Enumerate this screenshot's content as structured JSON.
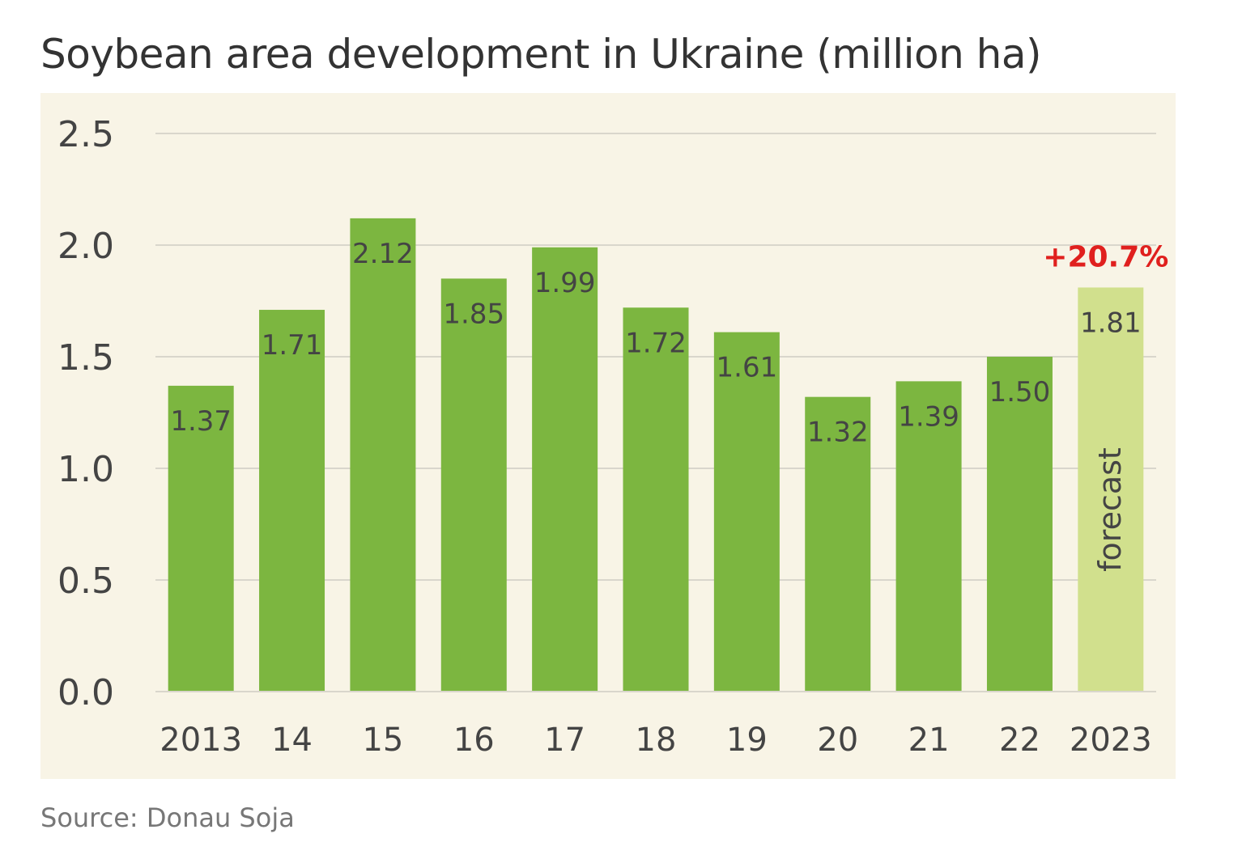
{
  "title": "Soybean area development in Ukraine (million ha)",
  "source": "Source: Donau Soja",
  "colors": {
    "panel": "#f8f4e6",
    "grid": "#d9d6cc",
    "bar": "#7cb640",
    "forecast_bar": "#d1e08d",
    "text": "#444444",
    "highlight": "#e0201e"
  },
  "chart_data": {
    "type": "bar",
    "categories": [
      "2013",
      "14",
      "15",
      "16",
      "17",
      "18",
      "19",
      "20",
      "21",
      "22",
      "2023"
    ],
    "values": [
      1.37,
      1.71,
      2.12,
      1.85,
      1.99,
      1.72,
      1.61,
      1.32,
      1.39,
      1.5,
      1.81
    ],
    "value_labels": [
      "1.37",
      "1.71",
      "2.12",
      "1.85",
      "1.99",
      "1.72",
      "1.61",
      "1.32",
      "1.39",
      "1.50",
      "1.81"
    ],
    "forecast_index": 10,
    "forecast_label": "forecast",
    "change_annotation": "+20.7%",
    "yticks": [
      "0.0",
      "0.5",
      "1.0",
      "1.5",
      "2.0",
      "2.5"
    ],
    "ylim": [
      0,
      2.5
    ],
    "grid": true,
    "legend": "none"
  }
}
